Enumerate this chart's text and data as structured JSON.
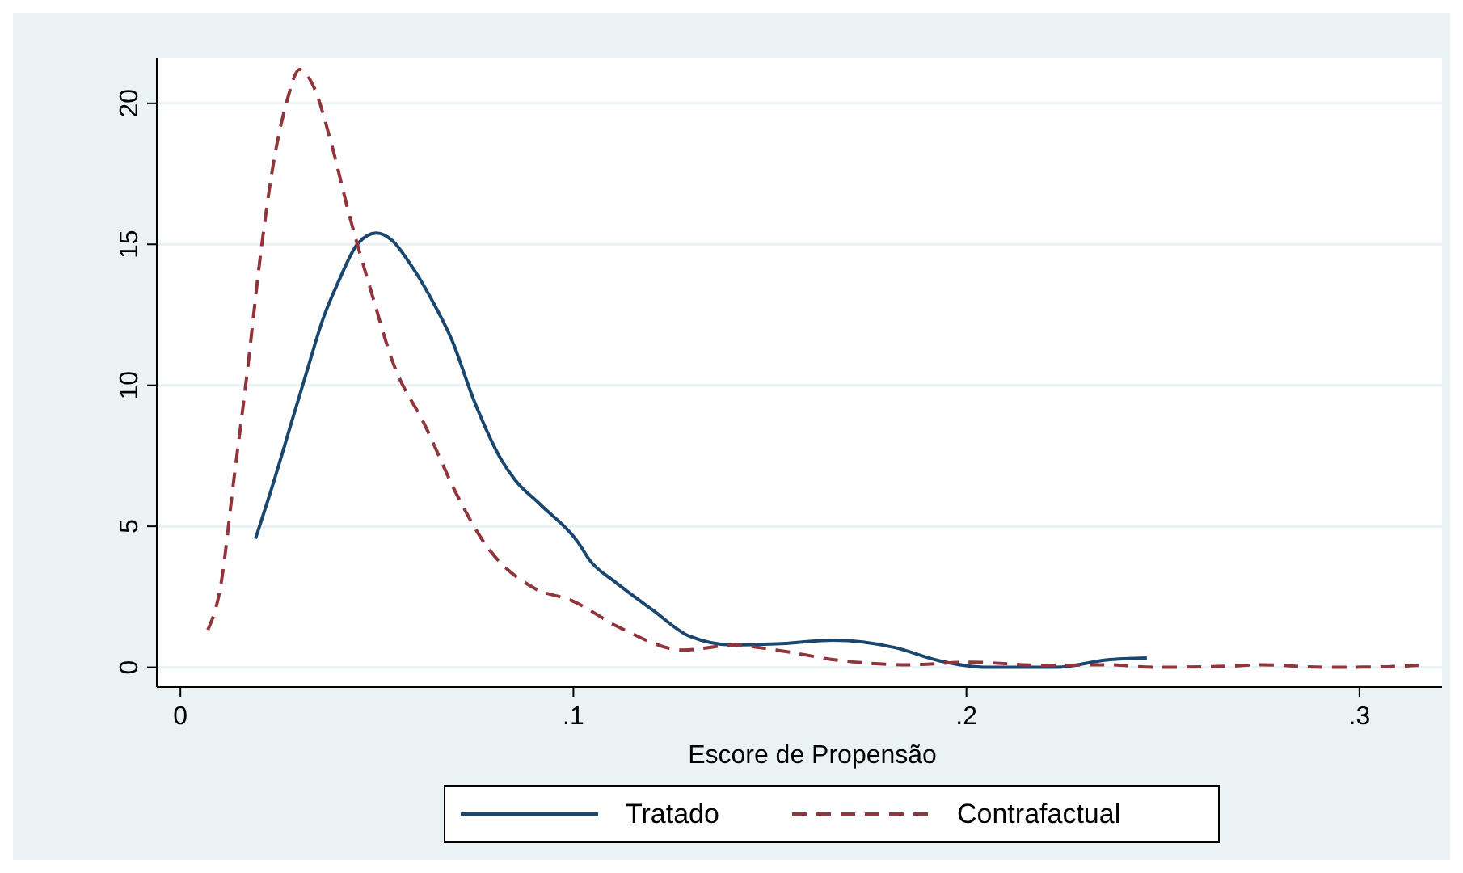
{
  "chart_data": {
    "type": "line",
    "xlabel": "Escore de Propensão",
    "xlim": [
      -0.006,
      0.321
    ],
    "xticks": [
      0,
      {
        "value": 0.1,
        "label": ".1"
      },
      {
        "value": 0.2,
        "label": ".2"
      },
      {
        "value": 0.3,
        "label": ".3"
      }
    ],
    "ylim": [
      -0.7,
      21.6
    ],
    "yticks": [
      0,
      5,
      10,
      15,
      20
    ],
    "grid": "y",
    "legend": "bottom",
    "series": [
      {
        "name": "Tratado",
        "color": "#1a476f",
        "line_style": "solid",
        "x": [
          0.0191,
          0.0239,
          0.028,
          0.0321,
          0.0363,
          0.0403,
          0.0451,
          0.0499,
          0.054,
          0.0582,
          0.0637,
          0.0691,
          0.0746,
          0.0815,
          0.0852,
          0.0916,
          0.1011,
          0.1042,
          0.1106,
          0.1201,
          0.1296,
          0.1406,
          0.1517,
          0.166,
          0.1818,
          0.1929,
          0.2056,
          0.223,
          0.2356,
          0.2459
        ],
        "values": [
          4.56,
          6.65,
          8.56,
          10.46,
          12.36,
          13.7,
          15.02,
          15.4,
          15.12,
          14.36,
          13.1,
          11.6,
          9.5,
          7.4,
          6.64,
          5.77,
          4.45,
          3.79,
          3.03,
          2.04,
          1.1,
          0.79,
          0.83,
          0.96,
          0.7,
          0.24,
          0,
          0,
          0.26,
          0.33
        ]
      },
      {
        "name": "Contrafactual",
        "color": "#90353b",
        "line_style": "dashed",
        "x": [
          0.007,
          0.0102,
          0.0136,
          0.017,
          0.0204,
          0.0239,
          0.0269,
          0.0303,
          0.0341,
          0.0383,
          0.0431,
          0.0486,
          0.054,
          0.0623,
          0.0705,
          0.0774,
          0.09,
          0.0995,
          0.1122,
          0.128,
          0.1406,
          0.1517,
          0.168,
          0.185,
          0.201,
          0.22,
          0.236,
          0.248,
          0.267,
          0.275,
          0.291,
          0.307,
          0.315
        ],
        "values": [
          1.33,
          2.85,
          6.65,
          10.46,
          14.64,
          18.06,
          19.97,
          21.2,
          20.53,
          18.63,
          15.97,
          13.3,
          10.84,
          8.56,
          6.08,
          4.4,
          2.81,
          2.37,
          1.38,
          0.61,
          0.79,
          0.61,
          0.24,
          0.09,
          0.18,
          0.07,
          0.09,
          0,
          0.04,
          0.09,
          0,
          0.02,
          0.07
        ]
      }
    ]
  }
}
